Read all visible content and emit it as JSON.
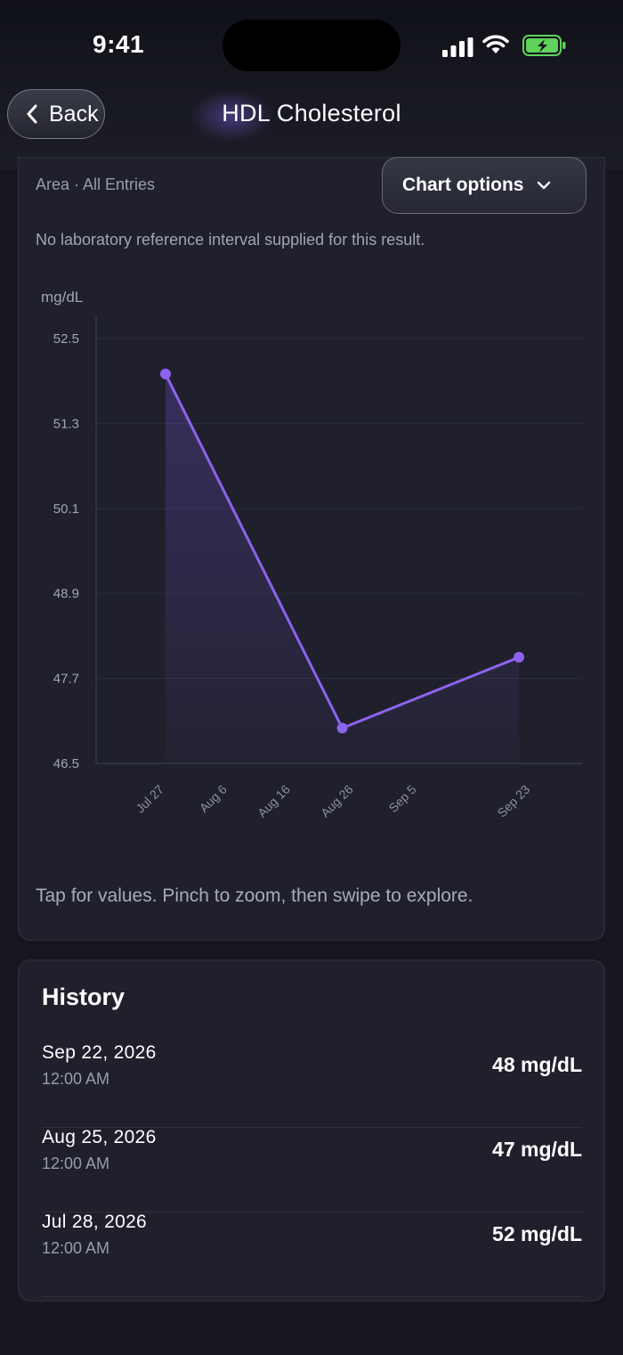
{
  "status": {
    "time": "9:41"
  },
  "nav": {
    "back_label": "Back",
    "title": "HDL Cholesterol"
  },
  "chart_card": {
    "subtitle": "Area · All Entries",
    "options_label": "Chart options",
    "note": "No laboratory reference interval supplied for this result.",
    "hint": "Tap for values. Pinch to zoom, then swipe to explore."
  },
  "chart_data": {
    "type": "area",
    "ylabel": "mg/dL",
    "ylim": [
      46.5,
      52.5
    ],
    "y_ticks": [
      "52.5",
      "51.3",
      "50.1",
      "48.9",
      "47.7",
      "46.5"
    ],
    "x_ticks": [
      "Jul 27",
      "Aug 6",
      "Aug 16",
      "Aug 26",
      "Sep 5",
      "Sep 23"
    ],
    "x_range": [
      "2026-07-17",
      "2026-10-02"
    ],
    "points": [
      {
        "x": "2026-07-28",
        "y": 52
      },
      {
        "x": "2026-08-25",
        "y": 47
      },
      {
        "x": "2026-09-22",
        "y": 48
      }
    ],
    "grid": true,
    "color": "#8b63ec"
  },
  "history": {
    "title": "History",
    "entries": [
      {
        "date": "Sep 22, 2026",
        "time": "12:00 AM",
        "value": "48 mg/dL"
      },
      {
        "date": "Aug 25, 2026",
        "time": "12:00 AM",
        "value": "47 mg/dL"
      },
      {
        "date": "Jul 28, 2026",
        "time": "12:00 AM",
        "value": "52 mg/dL"
      }
    ]
  },
  "colors": {
    "accent": "#8b63ec",
    "battery": "#5ed25a"
  }
}
